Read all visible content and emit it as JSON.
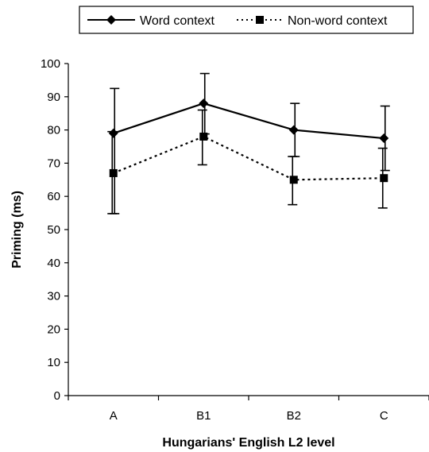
{
  "chart_data": {
    "type": "line",
    "title": "",
    "xlabel": "Hungarians' English L2 level",
    "ylabel": "Priming (ms)",
    "categories": [
      "A",
      "B1",
      "B2",
      "C"
    ],
    "ylim": [
      0,
      100
    ],
    "yticks": [
      0,
      10,
      20,
      30,
      40,
      50,
      60,
      70,
      80,
      90,
      100
    ],
    "grid": false,
    "legend_position": "top",
    "error_bars": true,
    "series": [
      {
        "name": "Word context",
        "line_style": "solid",
        "marker": "diamond",
        "color": "#000000",
        "values": [
          79,
          88,
          80,
          77.5
        ],
        "error_low": [
          54.8,
          78.8,
          72,
          67.8
        ],
        "error_high": [
          92.5,
          97,
          88,
          87.2
        ]
      },
      {
        "name": "Non-word context",
        "line_style": "dotted",
        "marker": "square",
        "color": "#000000",
        "values": [
          67,
          78,
          65,
          65.5
        ],
        "error_low": [
          54.8,
          69.5,
          57.5,
          56.5
        ],
        "error_high": [
          79.5,
          86,
          72,
          74.5
        ]
      }
    ]
  }
}
